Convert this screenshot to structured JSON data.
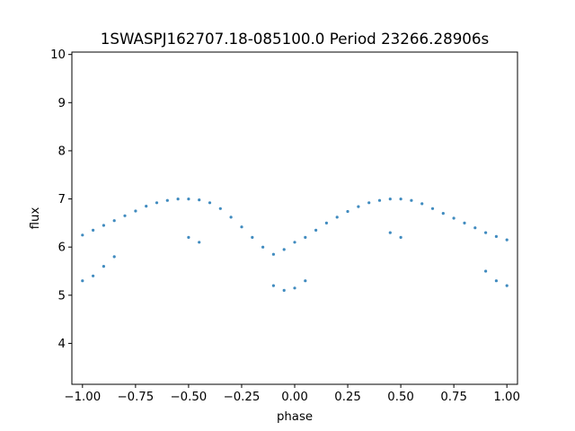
{
  "chart_data": {
    "type": "scatter",
    "title": "1SWASPJ162707.18-085100.0 Period 23266.28906s",
    "xlabel": "phase",
    "ylabel": "flux",
    "xlim": [
      -1.05,
      1.05
    ],
    "ylim": [
      3.15,
      10.05
    ],
    "xticks": [
      -1.0,
      -0.75,
      -0.5,
      -0.25,
      0.0,
      0.25,
      0.5,
      0.75,
      1.0
    ],
    "xtick_labels": [
      "−1.00",
      "−0.75",
      "−0.50",
      "−0.25",
      "0.00",
      "0.25",
      "0.50",
      "0.75",
      "1.00"
    ],
    "yticks": [
      4,
      5,
      6,
      7,
      8,
      9,
      10
    ],
    "ytick_labels": [
      "4",
      "5",
      "6",
      "7",
      "8",
      "9",
      "10"
    ],
    "grid": false,
    "legend": "none",
    "marker_color": "#1f77b4",
    "series": [
      {
        "description_points": "phase-folded light curve, two humps per cycle",
        "points": [
          [
            -1.0,
            6.25
          ],
          [
            -1.0,
            5.3
          ],
          [
            -0.95,
            6.35
          ],
          [
            -0.95,
            5.4
          ],
          [
            -0.9,
            6.45
          ],
          [
            -0.9,
            5.6
          ],
          [
            -0.85,
            6.55
          ],
          [
            -0.85,
            5.8
          ],
          [
            -0.8,
            6.65
          ],
          [
            -0.75,
            6.75
          ],
          [
            -0.7,
            6.85
          ],
          [
            -0.65,
            6.92
          ],
          [
            -0.6,
            6.97
          ],
          [
            -0.55,
            7.0
          ],
          [
            -0.5,
            7.0
          ],
          [
            -0.45,
            6.98
          ],
          [
            -0.4,
            6.92
          ],
          [
            -0.35,
            6.8
          ],
          [
            -0.3,
            6.62
          ],
          [
            -0.25,
            6.42
          ],
          [
            -0.2,
            6.2
          ],
          [
            -0.15,
            6.0
          ],
          [
            -0.1,
            5.85
          ],
          [
            -0.05,
            5.95
          ],
          [
            0.0,
            6.1
          ],
          [
            0.05,
            6.2
          ],
          [
            0.1,
            6.35
          ],
          [
            0.15,
            6.5
          ],
          [
            0.2,
            6.62
          ],
          [
            0.25,
            6.74
          ],
          [
            0.3,
            6.84
          ],
          [
            0.35,
            6.92
          ],
          [
            0.4,
            6.97
          ],
          [
            0.45,
            7.0
          ],
          [
            0.5,
            7.0
          ],
          [
            0.55,
            6.97
          ],
          [
            0.6,
            6.9
          ],
          [
            0.65,
            6.8
          ],
          [
            0.7,
            6.7
          ],
          [
            0.75,
            6.6
          ],
          [
            0.8,
            6.5
          ],
          [
            0.85,
            6.4
          ],
          [
            0.9,
            6.3
          ],
          [
            0.95,
            6.22
          ],
          [
            1.0,
            6.15
          ],
          [
            -0.1,
            5.2
          ],
          [
            -0.05,
            5.1
          ],
          [
            0.0,
            5.15
          ],
          [
            0.05,
            5.3
          ],
          [
            0.9,
            5.5
          ],
          [
            0.95,
            5.3
          ],
          [
            1.0,
            5.2
          ],
          [
            -0.5,
            6.2
          ],
          [
            -0.45,
            6.1
          ],
          [
            0.5,
            6.2
          ],
          [
            0.45,
            6.3
          ]
        ]
      }
    ]
  }
}
